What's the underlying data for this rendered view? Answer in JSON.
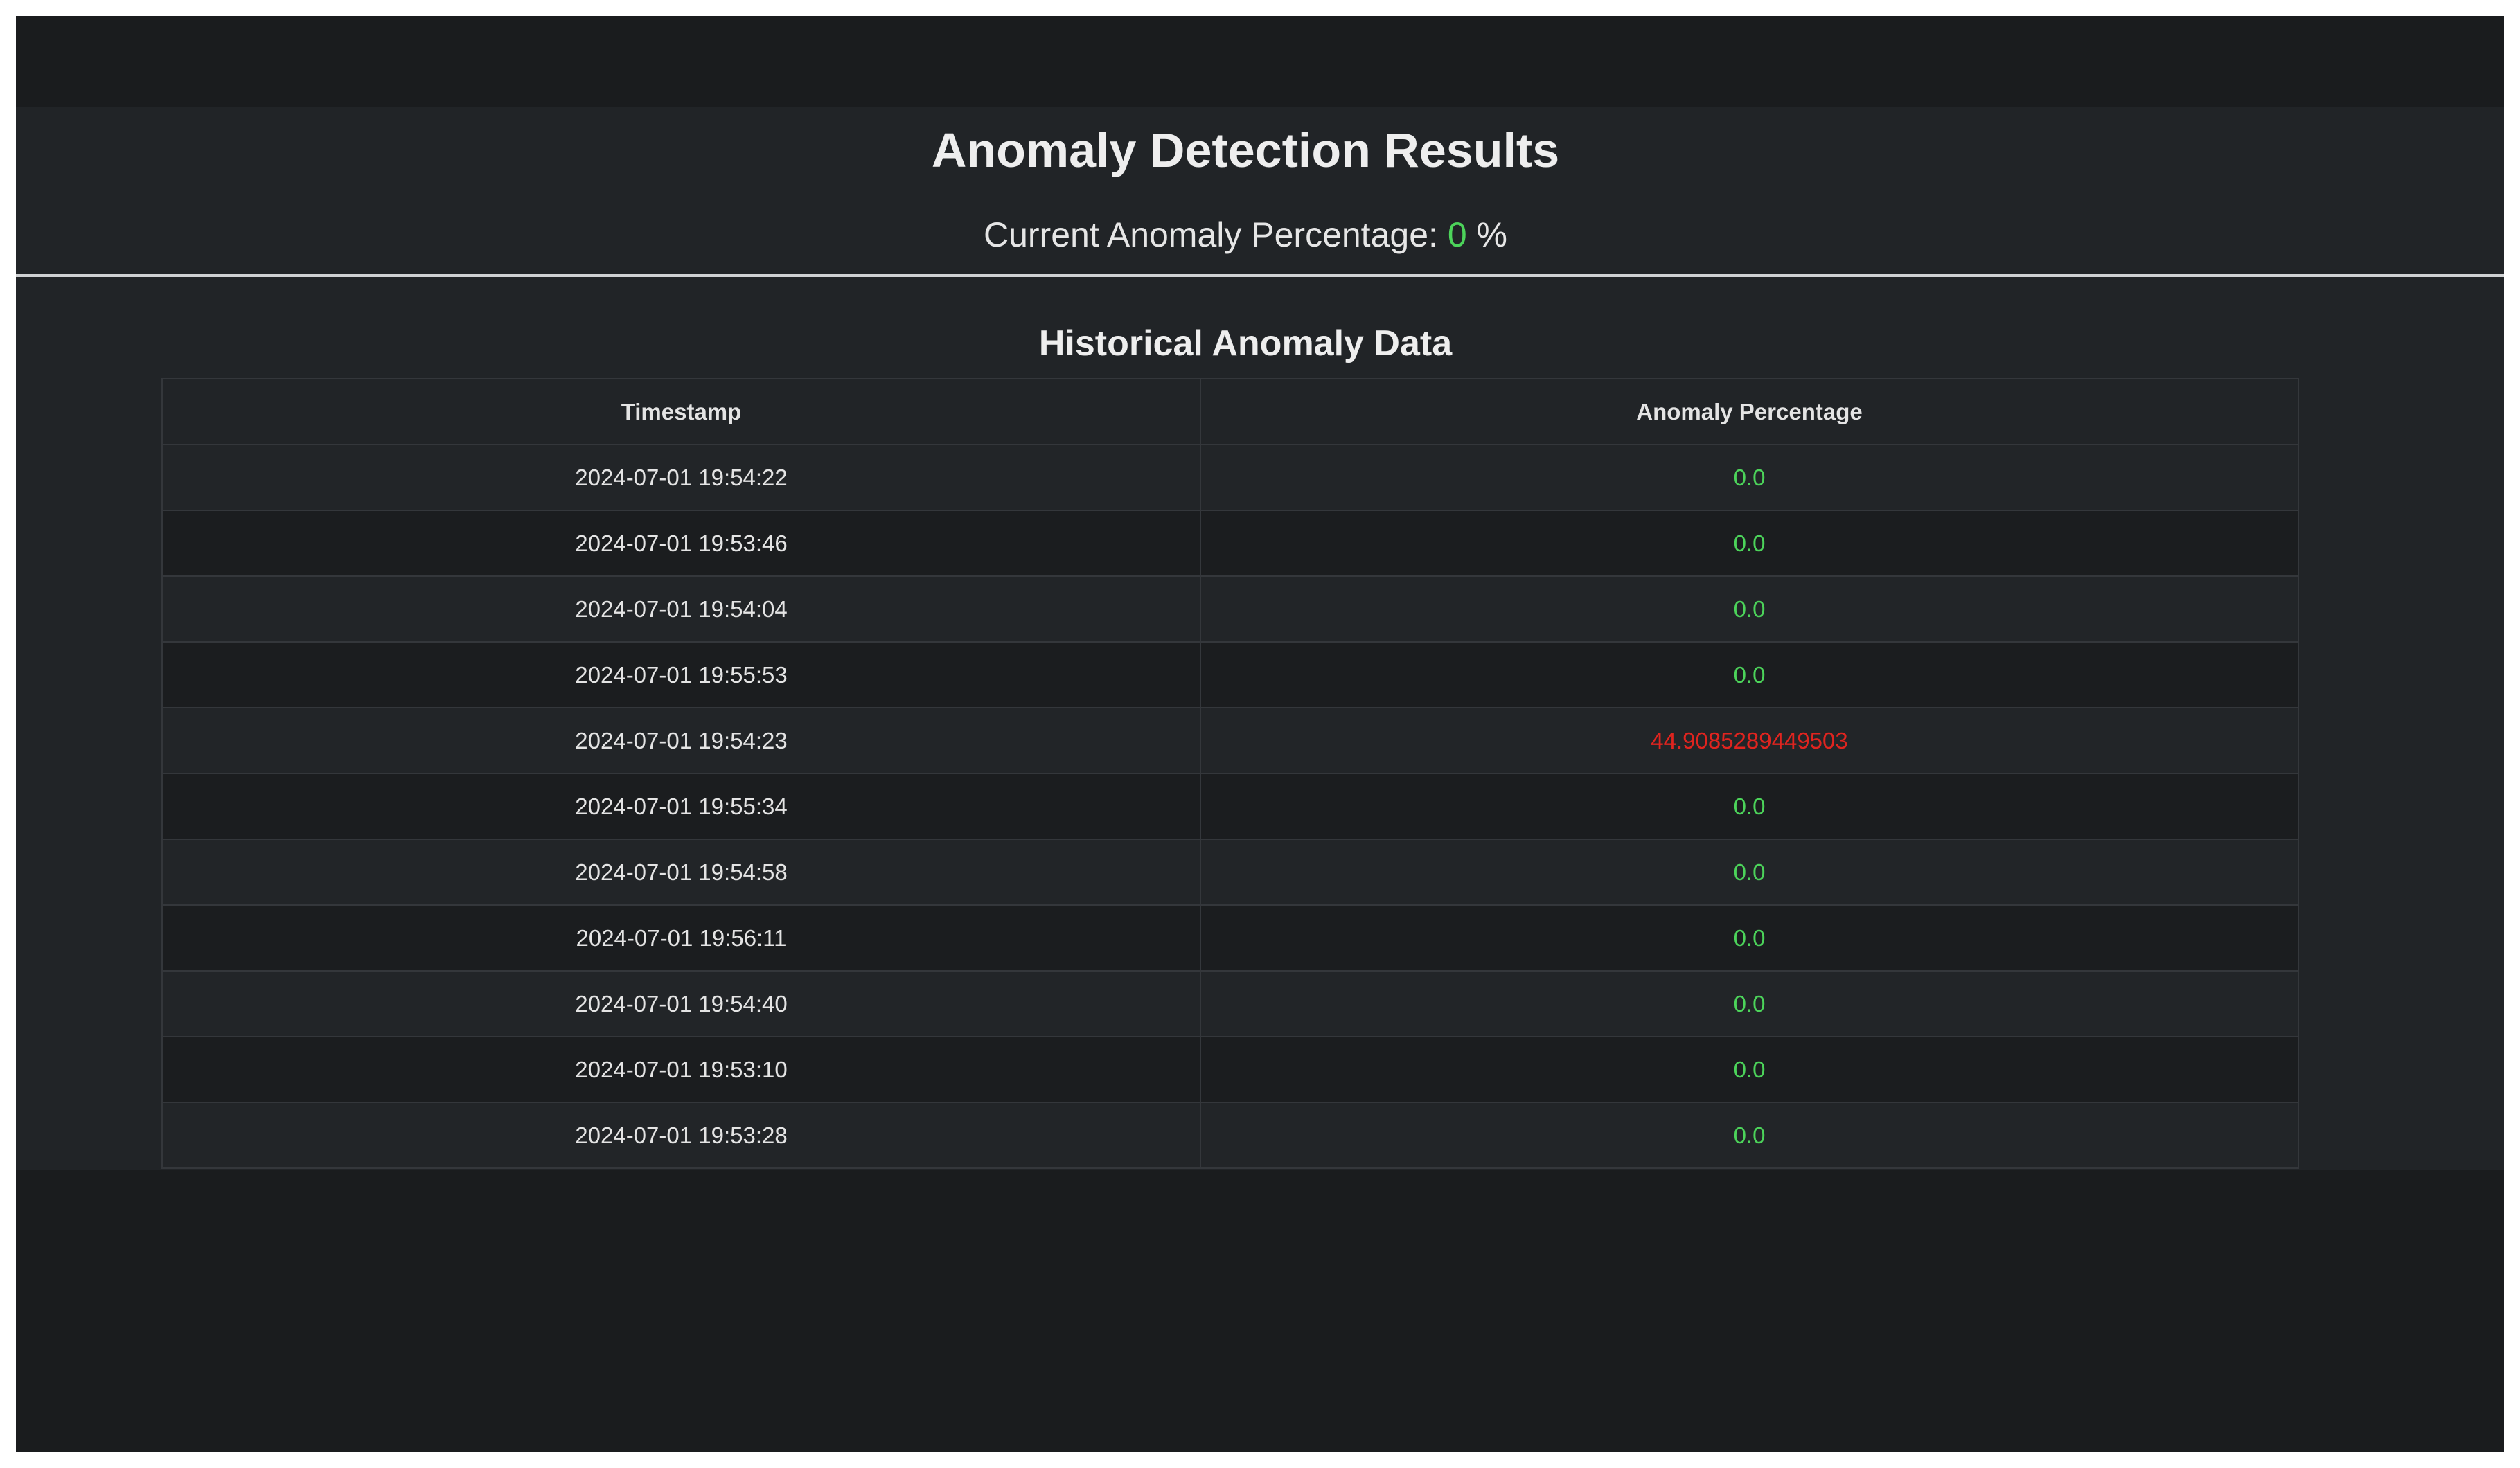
{
  "page": {
    "title": "Anomaly Detection Results",
    "current_label": "Current Anomaly Percentage:",
    "current_value": "0",
    "current_unit": "%",
    "history_title": "Historical Anomaly Data"
  },
  "table": {
    "headers": [
      "Timestamp",
      "Anomaly Percentage"
    ],
    "rows": [
      {
        "timestamp": "2024-07-01 19:54:22",
        "percentage": "0.0",
        "status": "normal"
      },
      {
        "timestamp": "2024-07-01 19:53:46",
        "percentage": "0.0",
        "status": "normal"
      },
      {
        "timestamp": "2024-07-01 19:54:04",
        "percentage": "0.0",
        "status": "normal"
      },
      {
        "timestamp": "2024-07-01 19:55:53",
        "percentage": "0.0",
        "status": "normal"
      },
      {
        "timestamp": "2024-07-01 19:54:23",
        "percentage": "44.9085289449503",
        "status": "anomaly"
      },
      {
        "timestamp": "2024-07-01 19:55:34",
        "percentage": "0.0",
        "status": "normal"
      },
      {
        "timestamp": "2024-07-01 19:54:58",
        "percentage": "0.0",
        "status": "normal"
      },
      {
        "timestamp": "2024-07-01 19:56:11",
        "percentage": "0.0",
        "status": "normal"
      },
      {
        "timestamp": "2024-07-01 19:54:40",
        "percentage": "0.0",
        "status": "normal"
      },
      {
        "timestamp": "2024-07-01 19:53:10",
        "percentage": "0.0",
        "status": "normal"
      },
      {
        "timestamp": "2024-07-01 19:53:28",
        "percentage": "0.0",
        "status": "normal"
      }
    ]
  },
  "colors": {
    "normal": "#4cd35a",
    "anomaly": "#e0241f",
    "background": "#1a1c1e",
    "panel": "#212427"
  }
}
